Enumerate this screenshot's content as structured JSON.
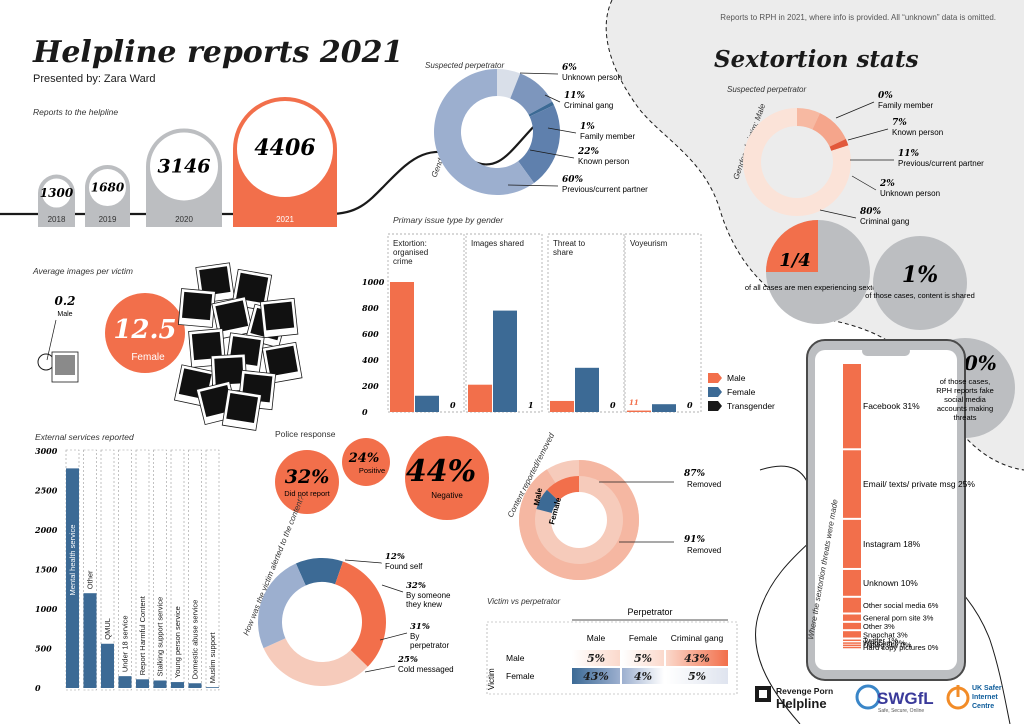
{
  "colors": {
    "orange": "#f26f4b",
    "blue": "#3c6a95",
    "lightblue": "#9cafcf",
    "grey": "#bcbec1",
    "pink": "#f6cbbb",
    "peach": "#fbe3d8",
    "dark": "#1a1a1a"
  },
  "header": {
    "title": "Helpline reports 2021",
    "presenter": "Presented by: Zara Ward",
    "note": "Reports to RPH in 2021, where info is provided. All “unknown” data is omitted.",
    "sextortion_title": "Sextortion stats"
  },
  "reports": {
    "label": "Reports to the helpline",
    "bars": [
      {
        "year": "2018",
        "value": "1300",
        "count": 1300
      },
      {
        "year": "2019",
        "value": "1680",
        "count": 1680
      },
      {
        "year": "2020",
        "value": "3146",
        "count": 3146
      },
      {
        "year": "2021",
        "value": "4406",
        "count": 4406
      }
    ]
  },
  "images": {
    "label": "Average images per victim",
    "male_value": "0.2",
    "male_label": "Male",
    "female_value": "12.5",
    "female_label": "Female"
  },
  "chart_data": [
    {
      "type": "pie",
      "title": "Suspected perpetrator",
      "ylabel": "Gender of victim: Female",
      "slices": [
        {
          "label": "Unknown person",
          "pct": "6%",
          "value": 6
        },
        {
          "label": "Criminal gang",
          "pct": "11%",
          "value": 11
        },
        {
          "label": "Family member",
          "pct": "1%",
          "value": 1
        },
        {
          "label": "Known person",
          "pct": "22%",
          "value": 22
        },
        {
          "label": "Previous/current partner",
          "pct": "60%",
          "value": 60
        }
      ]
    },
    {
      "type": "bar",
      "title": "Primary issue type by gender",
      "categories": [
        "Extortion: organised crime",
        "Images shared",
        "Threat to share",
        "Voyeurism"
      ],
      "series": [
        {
          "name": "Male",
          "values": [
            1000,
            210,
            85,
            11
          ]
        },
        {
          "name": "Female",
          "values": [
            125,
            780,
            340,
            60
          ]
        },
        {
          "name": "Transgender",
          "values": [
            0,
            1,
            0,
            0
          ]
        }
      ],
      "zero_labels": [
        "0",
        "1",
        "0",
        "0"
      ],
      "voyeur_male_label": "11",
      "yticks": [
        "1000",
        "800",
        "600",
        "400",
        "200",
        "0"
      ],
      "ylim": [
        0,
        1000
      ]
    },
    {
      "type": "pie",
      "title": "Suspected perpetrator",
      "ylabel": "Gender of victim: Male",
      "slices": [
        {
          "label": "Family member",
          "pct": "0%",
          "value": 0
        },
        {
          "label": "Known person",
          "pct": "7%",
          "value": 7
        },
        {
          "label": "Previous/current partner",
          "pct": "11%",
          "value": 11
        },
        {
          "label": "Unknown person",
          "pct": "2%",
          "value": 2
        },
        {
          "label": "Criminal gang",
          "pct": "80%",
          "value": 80
        }
      ]
    },
    {
      "type": "bar",
      "title": "External services reported",
      "categories": [
        "Mental health service",
        "Other",
        "QMUL",
        "Under 18 service",
        "Report Harmful Content",
        "Stalking support service",
        "Young person service",
        "Domestic abuse service",
        "Muslim support"
      ],
      "values": [
        2780,
        1200,
        560,
        150,
        110,
        95,
        75,
        60,
        10
      ],
      "yticks": [
        "3000",
        "2500",
        "2000",
        "1500",
        "1000",
        "500",
        "0"
      ],
      "ylim": [
        0,
        3000
      ]
    },
    {
      "type": "bubble",
      "title": "Police response",
      "items": [
        {
          "pct": "32%",
          "label": "Did not report",
          "value": 32
        },
        {
          "pct": "24%",
          "label": "Positive",
          "value": 24
        },
        {
          "pct": "44%",
          "label": "Negative",
          "value": 44
        }
      ]
    },
    {
      "type": "pie",
      "title": "Content reported/removed",
      "rings": [
        {
          "name": "Male",
          "pct": "91%",
          "label": "Removed",
          "value": 91
        },
        {
          "name": "Female",
          "pct": "87%",
          "label": "Removed",
          "value": 87
        }
      ]
    },
    {
      "type": "pie",
      "title": "How was the victim alerted to the content?",
      "slices": [
        {
          "label": "Found self",
          "pct": "12%",
          "value": 12
        },
        {
          "label": "By someone they knew",
          "pct": "32%",
          "value": 32
        },
        {
          "label": "By perpetrator",
          "pct": "31%",
          "value": 31
        },
        {
          "label": "Cold messaged",
          "pct": "25%",
          "value": 25
        }
      ]
    },
    {
      "type": "table",
      "title": "Victim vs perpetrator",
      "col_header": "Perpetrator",
      "row_header": "Victim",
      "columns": [
        "Male",
        "Female",
        "Criminal gang"
      ],
      "rows": [
        {
          "name": "Male",
          "values": [
            "5%",
            "5%",
            "43%"
          ]
        },
        {
          "name": "Female",
          "values": [
            "43%",
            "4%",
            "5%"
          ]
        }
      ]
    },
    {
      "type": "bar",
      "title": "Where the sextortion threats were made",
      "items": [
        {
          "label": "Facebook",
          "pct": "31%",
          "value": 31
        },
        {
          "label": "Email/ texts/ private msg",
          "pct": "25%",
          "value": 25
        },
        {
          "label": "Instagram",
          "pct": "18%",
          "value": 18
        },
        {
          "label": "Unknown",
          "pct": "10%",
          "value": 10
        },
        {
          "label": "Other social media",
          "pct": "6%",
          "value": 6
        },
        {
          "label": "General porn site",
          "pct": "3%",
          "value": 3
        },
        {
          "label": "Other",
          "pct": "3%",
          "value": 3
        },
        {
          "label": "Snapchat",
          "pct": "3%",
          "value": 3
        },
        {
          "label": "Twitter",
          "pct": "1%",
          "value": 1
        },
        {
          "label": "Webcam",
          "pct": "0%",
          "value": 0
        },
        {
          "label": "Dating site",
          "pct": "0%",
          "value": 0
        },
        {
          "label": "Hard copy pictures",
          "pct": "0%",
          "value": 0
        }
      ]
    }
  ],
  "sextortion_stats": {
    "quarter_value": "1/4",
    "quarter_text": "of all cases are men experiencing sextortion",
    "shared_value": "1%",
    "shared_text": "of those cases, content is shared",
    "fake_value": "<10%",
    "fake_text": "of those cases, RPH reports fake social media accounts making threats"
  },
  "issue_legend": [
    "Male",
    "Female",
    "Transgender"
  ],
  "logos": {
    "rph_line1": "Revenge Porn",
    "rph_line2": "Helpline",
    "swgfl": "SWGfL",
    "swgfl_sub": "Safe, Secure, Online",
    "uksic_line1": "UK Safer",
    "uksic_line2": "Internet",
    "uksic_line3": "Centre"
  }
}
